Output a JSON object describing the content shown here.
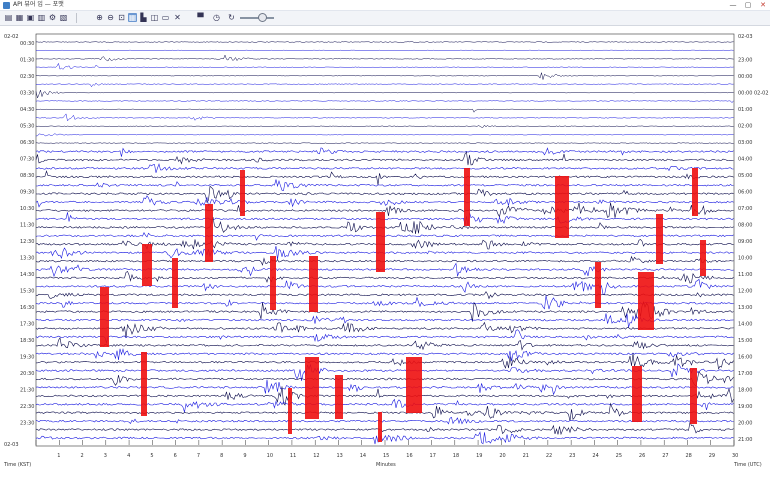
{
  "window": {
    "title": "API 뷰어 입 — 포맷",
    "controls": [
      "—",
      "▢",
      "✕"
    ]
  },
  "toolbar": {
    "icons": [
      "open-icon",
      "save-icon",
      "folder-icon",
      "print-icon",
      "settings-icon",
      "preview-icon",
      "zoom-in-icon",
      "zoom-out-icon",
      "zoom-fit-icon",
      "grid-icon",
      "chart-icon",
      "ruler-icon",
      "select-icon",
      "close-icon",
      "printer-icon",
      "clock-icon",
      "refresh-icon"
    ]
  },
  "drum": {
    "date_left": "02-02",
    "date_right": "02-03",
    "left_times": [
      "00:30",
      "01:30",
      "02:30",
      "03:30",
      "04:30",
      "05:30",
      "06:30",
      "07:30",
      "08:30",
      "09:30",
      "10:30",
      "11:30",
      "12:30",
      "13:30",
      "14:30",
      "15:30",
      "16:30",
      "17:30",
      "18:30",
      "19:30",
      "20:30",
      "21:30",
      "22:30",
      "23:30"
    ],
    "right_times": [
      "23:00",
      "00:00",
      "00:00 02-02",
      "01:00",
      "02:00",
      "03:00",
      "04:00",
      "05:00",
      "06:00",
      "07:00",
      "08:00",
      "09:00",
      "10:00",
      "11:00",
      "12:00",
      "13:00",
      "14:00",
      "15:00",
      "16:00",
      "17:00",
      "18:00",
      "19:00",
      "20:00",
      "21:00"
    ],
    "x_ticks": [
      "1",
      "2",
      "3",
      "4",
      "5",
      "6",
      "7",
      "8",
      "9",
      "10",
      "11",
      "12",
      "13",
      "14",
      "15",
      "16",
      "17",
      "18",
      "19",
      "20",
      "21",
      "22",
      "23",
      "24",
      "25",
      "26",
      "27",
      "28",
      "29",
      "30"
    ],
    "x_label": "Minutes",
    "left_axis_label": "Time (KST)",
    "right_axis_label": "Time (UTC)",
    "colors": {
      "trace_dark": "#0a0a4a",
      "trace_blue": "#1a1ae0",
      "trigger": "#ee1010",
      "text": "#333333"
    }
  }
}
